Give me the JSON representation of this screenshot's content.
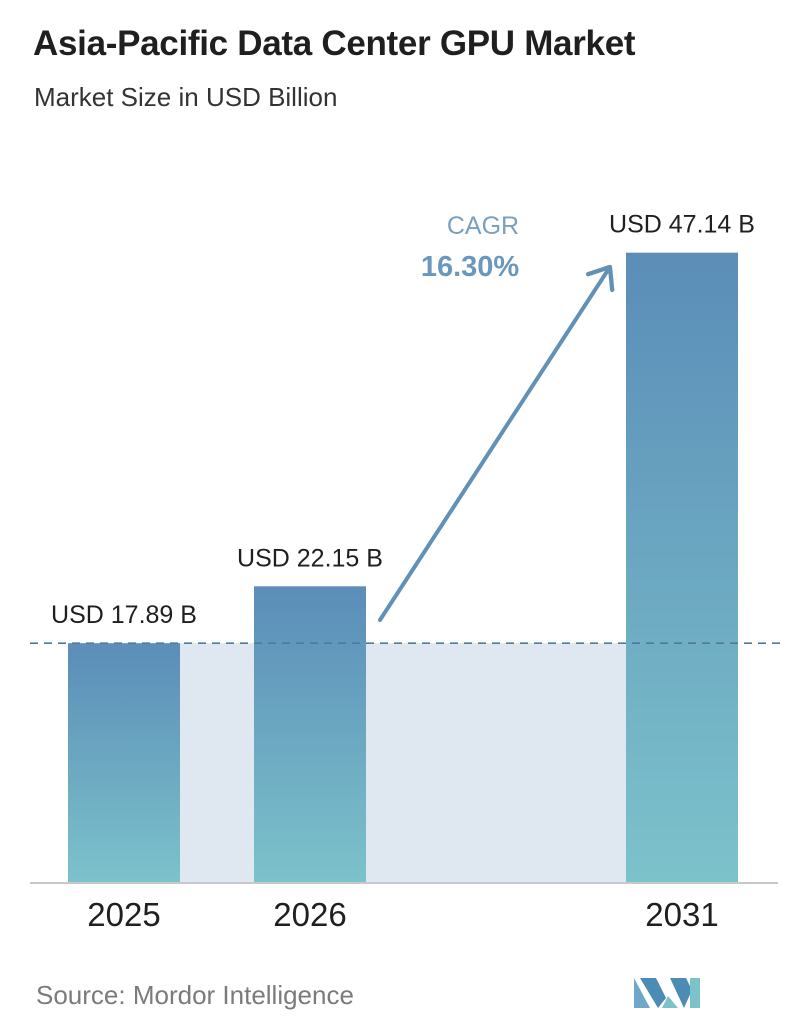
{
  "header": {
    "title": "Asia-Pacific Data Center GPU Market",
    "subtitle": "Market Size in USD Billion"
  },
  "footer": {
    "source": "Source: Mordor Intelligence",
    "logo_icon": "mordor-intelligence-logo-icon"
  },
  "annotation": {
    "cagr_label": "CAGR",
    "cagr_value": "16.30%"
  },
  "colors": {
    "bar_top": "#5b8db8",
    "bar_bottom": "#7cc2cb",
    "band": "#dfe8f1",
    "arrow": "#6391b6",
    "cagr_label": "#7a9fbf",
    "cagr_value": "#6a98bd",
    "dashed_line": "#4f7aa0",
    "axis": "#c8c8c8"
  },
  "chart_data": {
    "type": "bar",
    "title": "Asia-Pacific Data Center GPU Market",
    "subtitle": "Market Size in USD Billion",
    "categories": [
      "2025",
      "2026",
      "2031"
    ],
    "values": [
      17.89,
      22.15,
      47.14
    ],
    "value_labels": [
      "USD 17.89 B",
      "USD 22.15 B",
      "USD 47.14 B"
    ],
    "ylim": [
      0,
      50
    ],
    "reference_line_value": 17.89,
    "grid": false
  }
}
